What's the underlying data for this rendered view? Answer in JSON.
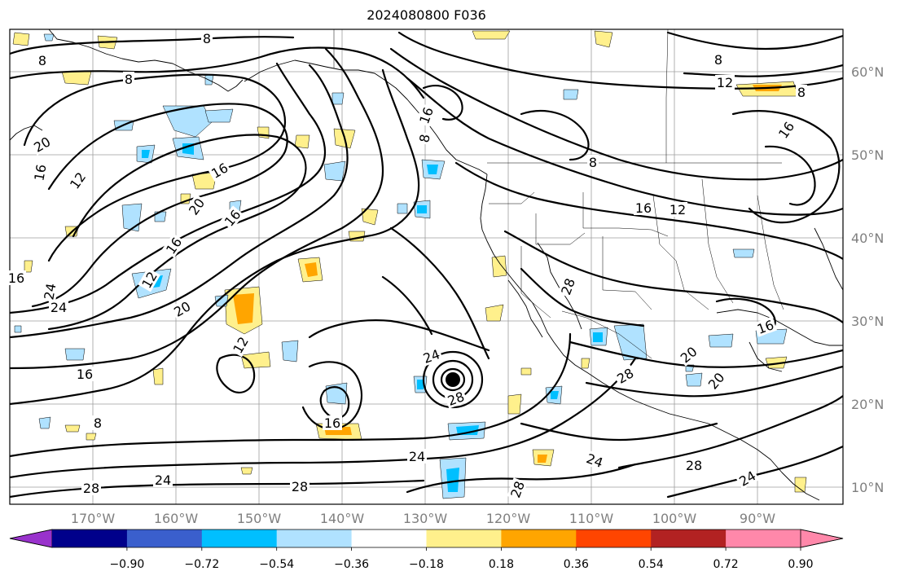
{
  "title": "2024080800 F036",
  "lat_labels": [
    "60°N",
    "50°N",
    "40°N",
    "30°N",
    "20°N",
    "10°N"
  ],
  "lon_labels": [
    "170°W",
    "160°W",
    "150°W",
    "140°W",
    "130°W",
    "120°W",
    "110°W",
    "100°W",
    "90°W"
  ],
  "contour_labels": [
    "8",
    "8",
    "8",
    "8",
    "12",
    "8",
    "16",
    "16",
    "20",
    "12",
    "16",
    "16",
    "20",
    "16",
    "12",
    "20",
    "24",
    "24",
    "16",
    "12",
    "16",
    "8",
    "16",
    "24",
    "28",
    "24",
    "24",
    "28",
    "24",
    "20",
    "28",
    "28",
    "28",
    "16",
    "20",
    "8",
    "16",
    "8",
    "16",
    "12",
    "28",
    "24",
    "28"
  ],
  "colorbar": {
    "tick_labels": [
      "−0.90",
      "−0.72",
      "−0.54",
      "−0.36",
      "−0.18",
      "0.18",
      "0.36",
      "0.54",
      "0.72",
      "0.90"
    ],
    "colors": [
      "#9932cc",
      "#00008b",
      "#3a5fcd",
      "#00bfff",
      "#b0e2ff",
      "#ffffff",
      "#fff08c",
      "#ffa500",
      "#ff4500",
      "#b22222",
      "#ff88aa",
      "#ff88aa"
    ]
  },
  "colors": {
    "positive_light": "#fff08c",
    "positive_strong": "#ffa500",
    "negative_light": "#b0e2ff",
    "negative_strong": "#00bfff",
    "storm_center": "#000000"
  }
}
